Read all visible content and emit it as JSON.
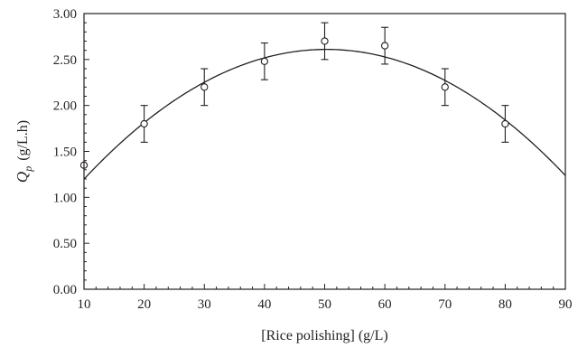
{
  "chart_data": {
    "type": "scatter",
    "title": "",
    "xlabel": "[Rice polishing] (g/L)",
    "ylabel": {
      "symbol": "Q",
      "subscript": "p",
      "unit": "(g/L.h)"
    },
    "xlim": [
      10,
      90
    ],
    "ylim": [
      0,
      3
    ],
    "xticks": [
      "10",
      "20",
      "30",
      "40",
      "50",
      "60",
      "70",
      "80",
      "90"
    ],
    "yticks": [
      "0.00",
      "0.50",
      "1.00",
      "1.50",
      "2.00",
      "2.50",
      "3.00"
    ],
    "grid": false,
    "points": [
      {
        "x": 10,
        "y": 1.35
      },
      {
        "x": 20,
        "y": 1.8,
        "err": 0.2
      },
      {
        "x": 30,
        "y": 2.2,
        "err": 0.2
      },
      {
        "x": 40,
        "y": 2.48,
        "err": 0.2
      },
      {
        "x": 50,
        "y": 2.7,
        "err": 0.2
      },
      {
        "x": 60,
        "y": 2.65,
        "err": 0.2
      },
      {
        "x": 70,
        "y": 2.2,
        "err": 0.2
      },
      {
        "x": 80,
        "y": 1.8,
        "err": 0.2
      }
    ],
    "fit": {
      "kind": "quadratic",
      "a": -0.00087,
      "b": 0.0875,
      "c": 0.41
    },
    "colors": {
      "line": "#231f20",
      "marker": "#231f20"
    }
  }
}
